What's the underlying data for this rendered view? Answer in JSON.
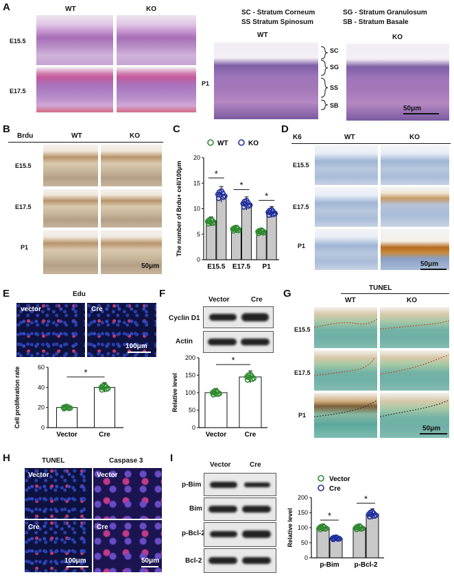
{
  "panels": {
    "A": "A",
    "B": "B",
    "C": "C",
    "D": "D",
    "E": "E",
    "F": "F",
    "G": "G",
    "H": "H",
    "I": "I"
  },
  "a": {
    "wt": "WT",
    "ko": "KO",
    "e155": "E15.5",
    "e175": "E17.5",
    "p1": "P1",
    "legend_sc": "SC - Stratum Corneum",
    "legend_sg": "SG - Stratum Granulosum",
    "legend_ss": "SS  Stratum Spinosum",
    "legend_sb": "SB - Stratum Basale",
    "sc": "SC",
    "sg": "SG",
    "ss": "SS",
    "sb": "SB",
    "scale": "50μm"
  },
  "b": {
    "stain": "Brdu",
    "wt": "WT",
    "ko": "KO",
    "rows": [
      "E15.5",
      "E17.5",
      "P1"
    ],
    "scale": "50μm"
  },
  "c": {
    "legend_wt": "WT",
    "legend_ko": "KO",
    "sig": "*"
  },
  "d": {
    "stain": "K6",
    "wt": "WT",
    "ko": "KO",
    "rows": [
      "E15.5",
      "E17.5",
      "P1"
    ],
    "scale": "50μm"
  },
  "e": {
    "title": "Edu",
    "vector": "vector",
    "cre": "Cre",
    "scale": "100μm",
    "sig": "*"
  },
  "f": {
    "vector": "Vector",
    "cre": "Cre",
    "cyclin": "Cyclin D1",
    "actin": "Actin",
    "sig": "*"
  },
  "g": {
    "title": "TUNEL",
    "wt": "WT",
    "ko": "KO",
    "rows": [
      "E15.5",
      "E17.5",
      "P1"
    ],
    "scale": "50μm"
  },
  "h": {
    "tunel": "TUNEL",
    "caspase": "Caspase 3",
    "vector": "Vector",
    "cre": "Cre",
    "scale1": "100μm",
    "scale2": "50μm"
  },
  "i": {
    "vector": "Vector",
    "cre": "Cre",
    "pbim": "p-Bim",
    "bim": "Bim",
    "pbcl2": "p-Bcl-2",
    "bcl2": "Bcl-2",
    "legend_vector": "Vector",
    "legend_cre": "Cre",
    "sig": "*"
  },
  "chart_data": [
    {
      "type": "bar",
      "id": "C",
      "categories": [
        "E15.5",
        "E17.5",
        "P1"
      ],
      "series": [
        {
          "name": "WT",
          "values": [
            7.5,
            6,
            5.5
          ],
          "color": "#2e8b2e"
        },
        {
          "name": "KO",
          "values": [
            12.8,
            11,
            9.3
          ],
          "color": "#1f2fa0"
        }
      ],
      "ylabel": "The number of Brdu+ cell/100μm",
      "ylim": [
        0,
        20
      ],
      "yticks": [
        "0",
        "5",
        "10",
        "15",
        "20"
      ],
      "significance": [
        "*",
        "*",
        "*"
      ]
    },
    {
      "type": "bar",
      "id": "E",
      "categories": [
        "Vector",
        "Cre"
      ],
      "values": [
        20,
        40
      ],
      "colors": [
        "#2e8b2e",
        "#2e8b2e"
      ],
      "ylabel": "Cell proliferation rate",
      "ylim": [
        0,
        60
      ],
      "yticks": [
        "0",
        "20",
        "40",
        "60"
      ],
      "significance": [
        "*"
      ]
    },
    {
      "type": "bar",
      "id": "F",
      "categories": [
        "Vector",
        "Cre"
      ],
      "values": [
        100,
        145
      ],
      "colors": [
        "#2e8b2e",
        "#2e8b2e"
      ],
      "ylabel": "Relative level",
      "ylim": [
        0,
        200
      ],
      "yticks": [
        "0",
        "50",
        "100",
        "150",
        "200"
      ],
      "significance": [
        "*"
      ]
    },
    {
      "type": "bar",
      "id": "I",
      "categories": [
        "p-Bim",
        "p-Bcl-2"
      ],
      "series": [
        {
          "name": "Vector",
          "values": [
            100,
            100
          ],
          "color": "#2e8b2e"
        },
        {
          "name": "Cre",
          "values": [
            65,
            145
          ],
          "color": "#1f2fa0"
        }
      ],
      "ylabel": "Relative level",
      "ylim": [
        0,
        200
      ],
      "yticks": [
        "0",
        "50",
        "100",
        "150",
        "200"
      ],
      "significance": [
        "*",
        "*"
      ]
    }
  ]
}
